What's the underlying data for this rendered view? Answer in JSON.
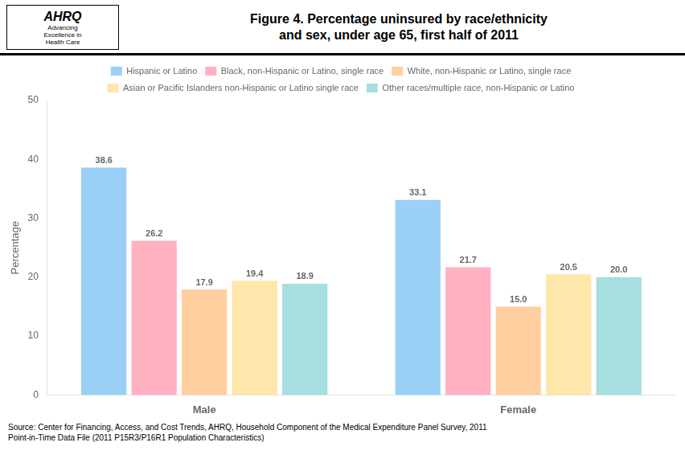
{
  "chart_data": {
    "type": "bar",
    "title": "Figure 4. Percentage uninsured by race/ethnicity\nand sex, under age 65, first half of 2011",
    "ylabel": "Percentage",
    "categories": [
      "Male",
      "Female"
    ],
    "series": [
      {
        "name": "Hispanic or Latino",
        "values": [
          38.6,
          33.1
        ],
        "value_labels": [
          "38.6",
          "33.1"
        ]
      },
      {
        "name": "Black, non-Hispanic or Latino, single race",
        "values": [
          26.2,
          21.7
        ],
        "value_labels": [
          "26.2",
          "21.7"
        ]
      },
      {
        "name": "White, non-Hispanic or Latino, single race",
        "values": [
          17.9,
          15.0
        ],
        "value_labels": [
          "17.9",
          "15.0"
        ]
      },
      {
        "name": "Asian or Pacific Islanders non-Hispanic or Latino single race",
        "values": [
          19.4,
          20.5
        ],
        "value_labels": [
          "19.4",
          "20.5"
        ]
      },
      {
        "name": "Other races/multiple race, non-Hispanic or Latino",
        "values": [
          18.9,
          20.0
        ],
        "value_labels": [
          "18.9",
          "20.0"
        ]
      }
    ],
    "ylim": [
      0,
      50
    ],
    "yticks": [
      0,
      10,
      20,
      30,
      40,
      50
    ],
    "grid": false,
    "legend": "top",
    "data_labels": true,
    "annotations": [
      "AHRQ",
      "Advancing\nExcellence in\nHealth Care",
      "Source: Center for Financing, Access, and Cost Trends, AHRQ, Household Component of the Medical Expenditure Panel Survey, 2011\nPoint-in-Time Data File (2011 P15R3/P16R1 Population Characteristics)"
    ]
  }
}
